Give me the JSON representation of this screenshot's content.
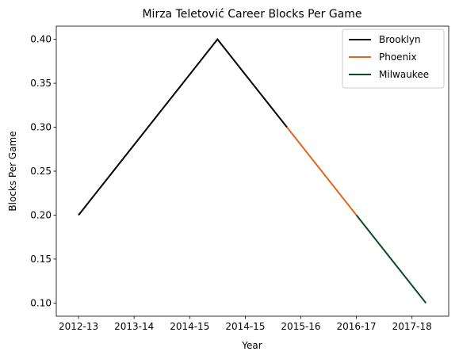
{
  "chart_data": {
    "type": "line",
    "title": "Mirza Teletović Career Blocks Per Game",
    "xlabel": "Year",
    "ylabel": "Blocks Per Game",
    "categories": [
      "2012-13",
      "2013-14",
      "2014-15",
      "2014-15",
      "2015-16",
      "2016-17",
      "2017-18"
    ],
    "ylim": [
      0.085,
      0.415
    ],
    "yticks": [
      0.1,
      0.15,
      0.2,
      0.25,
      0.3,
      0.35,
      0.4
    ],
    "ytick_labels": [
      "0.10",
      "0.15",
      "0.20",
      "0.25",
      "0.30",
      "0.35",
      "0.40"
    ],
    "series": [
      {
        "name": "Brooklyn",
        "color": "#000000",
        "x": [
          0,
          2.5,
          3.75
        ],
        "y": [
          0.2,
          0.4,
          0.3
        ]
      },
      {
        "name": "Phoenix",
        "color": "#e0661f",
        "x": [
          3.75,
          5.0
        ],
        "y": [
          0.3,
          0.2
        ]
      },
      {
        "name": "Milwaukee",
        "color": "#0b4a22",
        "x": [
          5.0,
          6.25
        ],
        "y": [
          0.2,
          0.1
        ]
      }
    ],
    "grid": false,
    "legend_position": "top-right"
  }
}
